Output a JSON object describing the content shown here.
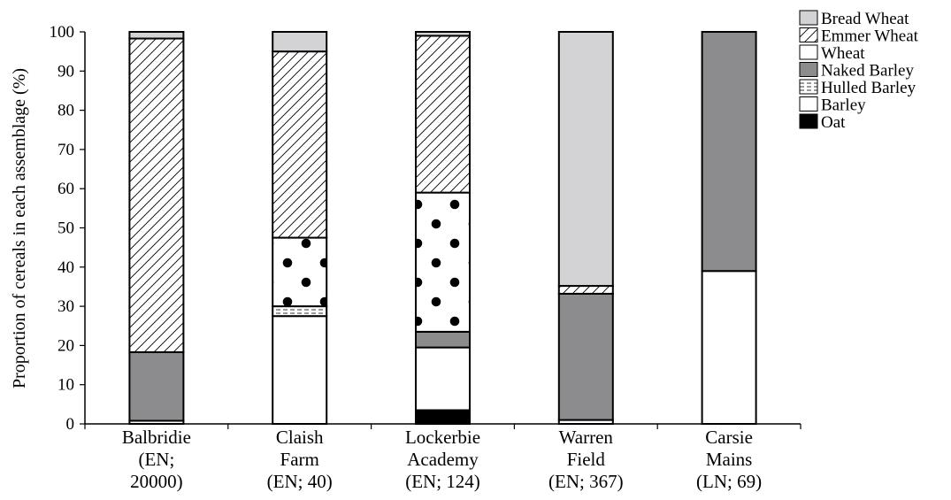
{
  "chart_data": {
    "type": "bar",
    "stacked": true,
    "title": "",
    "xlabel": "",
    "ylabel": "Proportion of cereals in each assemblage (%)",
    "ylim": [
      0,
      100
    ],
    "yticks": [
      0,
      10,
      20,
      30,
      40,
      50,
      60,
      70,
      80,
      90,
      100
    ],
    "grid": false,
    "legend_position": "top-right",
    "categories": [
      [
        "Balbridie",
        "(EN;",
        "20000)"
      ],
      [
        "Claish",
        "Farm",
        "(EN; 40)"
      ],
      [
        "Lockerbie",
        "Academy",
        "(EN; 124)"
      ],
      [
        "Warren",
        "Field",
        "(EN; 367)"
      ],
      [
        "Carsie",
        "Mains",
        "(LN; 69)"
      ]
    ],
    "series": [
      {
        "name": "Oat",
        "pattern": "solid-black",
        "values": [
          0,
          0,
          3.5,
          0,
          0
        ]
      },
      {
        "name": "Barley",
        "pattern": "white",
        "values": [
          0.8,
          27.5,
          16,
          1,
          39
        ]
      },
      {
        "name": "Hulled Barley",
        "pattern": "dashed-lines",
        "values": [
          0,
          2.5,
          0,
          0,
          0
        ]
      },
      {
        "name": "Naked Barley",
        "pattern": "dark-grey",
        "values": [
          17.5,
          0,
          4,
          32.2,
          61
        ]
      },
      {
        "name": "Wheat",
        "pattern": "large-dots",
        "values": [
          0,
          17.5,
          35.5,
          0,
          0
        ]
      },
      {
        "name": "Emmer Wheat",
        "pattern": "diagonal-hatch",
        "values": [
          80,
          47.5,
          40,
          2,
          0
        ]
      },
      {
        "name": "Bread Wheat",
        "pattern": "light-grey",
        "values": [
          1.7,
          5,
          1,
          64.8,
          0
        ]
      }
    ],
    "colors": {
      "naked_barley": "#8c8c8e",
      "bread_wheat": "#d3d3d5",
      "oat": "#000000",
      "barley": "#ffffff"
    }
  }
}
